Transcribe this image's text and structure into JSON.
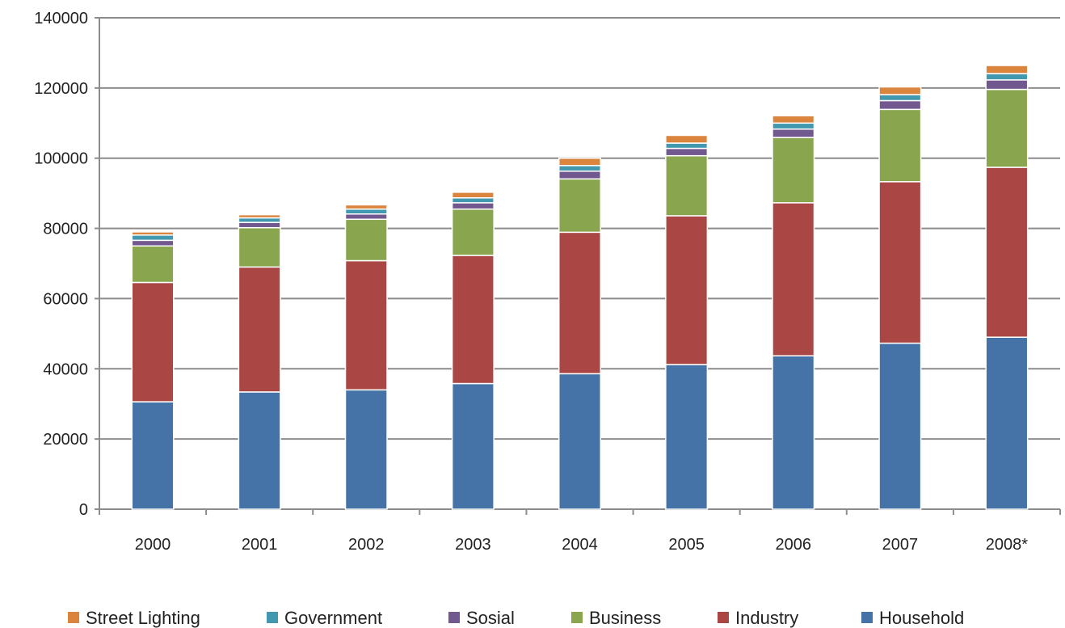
{
  "chart_data": {
    "type": "bar",
    "stacked": true,
    "title": "",
    "xlabel": "",
    "ylabel": "",
    "ylim": [
      0,
      140000
    ],
    "yticks": [
      0,
      20000,
      40000,
      60000,
      80000,
      100000,
      120000,
      140000
    ],
    "grid": true,
    "legend_position": "bottom",
    "categories": [
      "2000",
      "2001",
      "2002",
      "2003",
      "2004",
      "2005",
      "2006",
      "2007",
      "2008*"
    ],
    "series": [
      {
        "name": "Household",
        "color": "#4572A7",
        "values": [
          30600,
          33400,
          34000,
          35800,
          38600,
          41200,
          43700,
          47300,
          49000
        ]
      },
      {
        "name": "Industry",
        "color": "#AA4643",
        "values": [
          34000,
          35600,
          36800,
          36500,
          40300,
          42400,
          43600,
          46000,
          48400
        ]
      },
      {
        "name": "Business",
        "color": "#89A54E",
        "values": [
          10400,
          11200,
          11800,
          13200,
          15200,
          17100,
          18600,
          20600,
          22200
        ]
      },
      {
        "name": "Sosial",
        "color": "#71588F",
        "values": [
          1600,
          1500,
          1500,
          1800,
          2200,
          2100,
          2400,
          2500,
          2700
        ]
      },
      {
        "name": "Government",
        "color": "#4198AF",
        "values": [
          1500,
          1300,
          1400,
          1400,
          1600,
          1500,
          1700,
          1700,
          1800
        ]
      },
      {
        "name": "Street Lighting",
        "color": "#DB843D",
        "values": [
          900,
          900,
          1200,
          1600,
          2100,
          2200,
          2100,
          2200,
          2300
        ]
      }
    ],
    "legend_order": [
      "Street Lighting",
      "Government",
      "Sosial",
      "Business",
      "Industry",
      "Household"
    ]
  }
}
